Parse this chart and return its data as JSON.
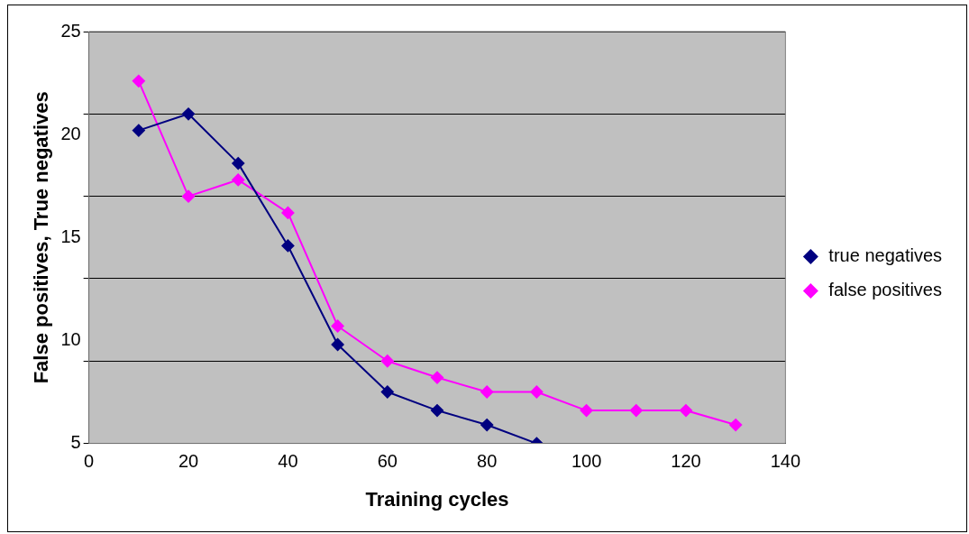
{
  "chart_data": {
    "type": "line",
    "xlabel": "Training cycles",
    "ylabel": "False positives, True negatives",
    "x": [
      10,
      20,
      30,
      40,
      50,
      60,
      70,
      80,
      90,
      100,
      110,
      120,
      130
    ],
    "series": [
      {
        "name": "true negatives",
        "color": "#000080",
        "values": [
          20.2,
          21,
          18.6,
          14.6,
          9.8,
          7.5,
          6.6,
          5.9,
          5,
          null,
          null,
          null,
          null
        ]
      },
      {
        "name": "false positives",
        "color": "#ff00ff",
        "values": [
          22.6,
          17,
          17.8,
          16.2,
          10.7,
          9,
          8.2,
          7.5,
          7.5,
          6.6,
          6.6,
          6.6,
          5.9
        ]
      }
    ],
    "xlim": [
      0,
      140
    ],
    "xticks": [
      0,
      20,
      40,
      60,
      80,
      100,
      120,
      140
    ],
    "ylim": [
      5,
      25
    ],
    "yticks": [
      5,
      {
        "value": 9,
        "label": null
      },
      10,
      {
        "value": 13,
        "label": null
      },
      15,
      {
        "value": 17,
        "label": null
      },
      20,
      {
        "value": 21,
        "label": null
      },
      25
    ],
    "grid": "y",
    "legend": "right",
    "marker": "diamond",
    "line_style": "solid"
  }
}
